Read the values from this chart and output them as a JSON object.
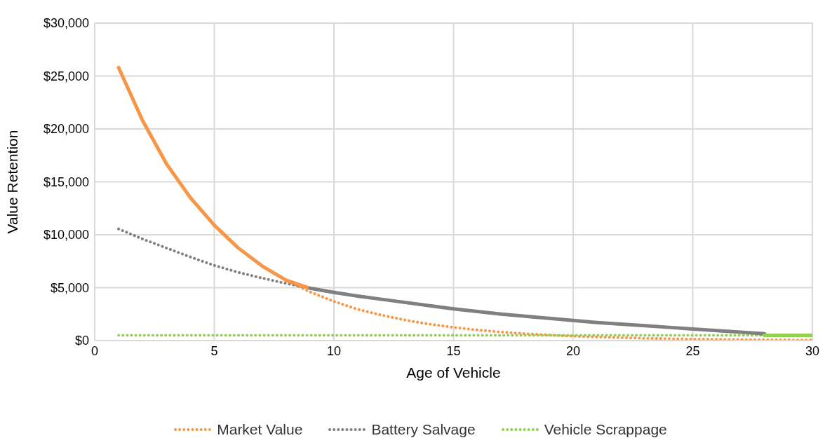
{
  "chart_data": {
    "type": "line",
    "xlabel": "Age of Vehicle",
    "ylabel": "Value Retention",
    "xlim": [
      0,
      30
    ],
    "xticks": [
      0,
      5,
      10,
      15,
      20,
      25,
      30
    ],
    "ylim": [
      0,
      30000
    ],
    "yticks": [
      {
        "value": 0,
        "label": "$0"
      },
      {
        "value": 5000,
        "label": "$5,000"
      },
      {
        "value": 10000,
        "label": "$10,000"
      },
      {
        "value": 15000,
        "label": "$15,000"
      },
      {
        "value": 20000,
        "label": "$20,000"
      },
      {
        "value": 25000,
        "label": "$25,000"
      },
      {
        "value": 30000,
        "label": "$30,000"
      }
    ],
    "grid": true,
    "legend": "bottom",
    "marker": "none",
    "x": [
      1,
      2,
      3,
      4,
      5,
      6,
      7,
      8,
      9,
      10,
      11,
      12,
      13,
      14,
      15,
      16,
      17,
      18,
      19,
      20,
      21,
      22,
      23,
      24,
      25,
      26,
      27,
      28,
      29,
      30
    ],
    "series": [
      {
        "name": "Market Value",
        "color": "#f79646",
        "line_style": "dotted",
        "values": [
          25800,
          20800,
          16700,
          13500,
          10900,
          8750,
          7050,
          5700,
          4600,
          3700,
          2950,
          2400,
          1930,
          1550,
          1250,
          1000,
          810,
          650,
          525,
          420,
          340,
          275,
          220,
          178,
          143,
          115,
          93,
          75,
          60,
          48
        ]
      },
      {
        "name": "Battery Salvage",
        "color": "#808080",
        "line_style": "dotted",
        "values": [
          10550,
          9600,
          8750,
          7900,
          7100,
          6450,
          5900,
          5400,
          4950,
          4550,
          4200,
          3900,
          3600,
          3300,
          3000,
          2750,
          2500,
          2300,
          2100,
          1900,
          1700,
          1550,
          1400,
          1250,
          1100,
          950,
          800,
          650,
          null,
          null
        ]
      },
      {
        "name": "Vehicle Scrappage",
        "color": "#92d050",
        "line_style": "dotted",
        "values": [
          500,
          500,
          500,
          500,
          500,
          500,
          500,
          500,
          500,
          500,
          500,
          500,
          500,
          500,
          500,
          500,
          500,
          500,
          500,
          500,
          500,
          500,
          500,
          500,
          500,
          500,
          500,
          500,
          500,
          500
        ]
      },
      {
        "color": "#f79646",
        "line_style": "solid",
        "x": [
          1,
          2,
          3,
          4,
          5,
          6,
          7,
          8,
          9
        ],
        "values": [
          25800,
          20800,
          16700,
          13500,
          10900,
          8750,
          7050,
          5700,
          4950
        ]
      },
      {
        "color": "#808080",
        "line_style": "solid",
        "x": [
          9,
          10,
          11,
          12,
          13,
          14,
          15,
          16,
          17,
          18,
          19,
          20,
          21,
          22,
          23,
          24,
          25,
          26,
          27,
          28
        ],
        "values": [
          4950,
          4550,
          4200,
          3900,
          3600,
          3300,
          3000,
          2750,
          2500,
          2300,
          2100,
          1900,
          1700,
          1550,
          1400,
          1250,
          1100,
          950,
          800,
          650
        ]
      },
      {
        "color": "#92d050",
        "line_style": "solid",
        "x": [
          28,
          29,
          30
        ],
        "values": [
          500,
          500,
          500
        ]
      }
    ]
  }
}
